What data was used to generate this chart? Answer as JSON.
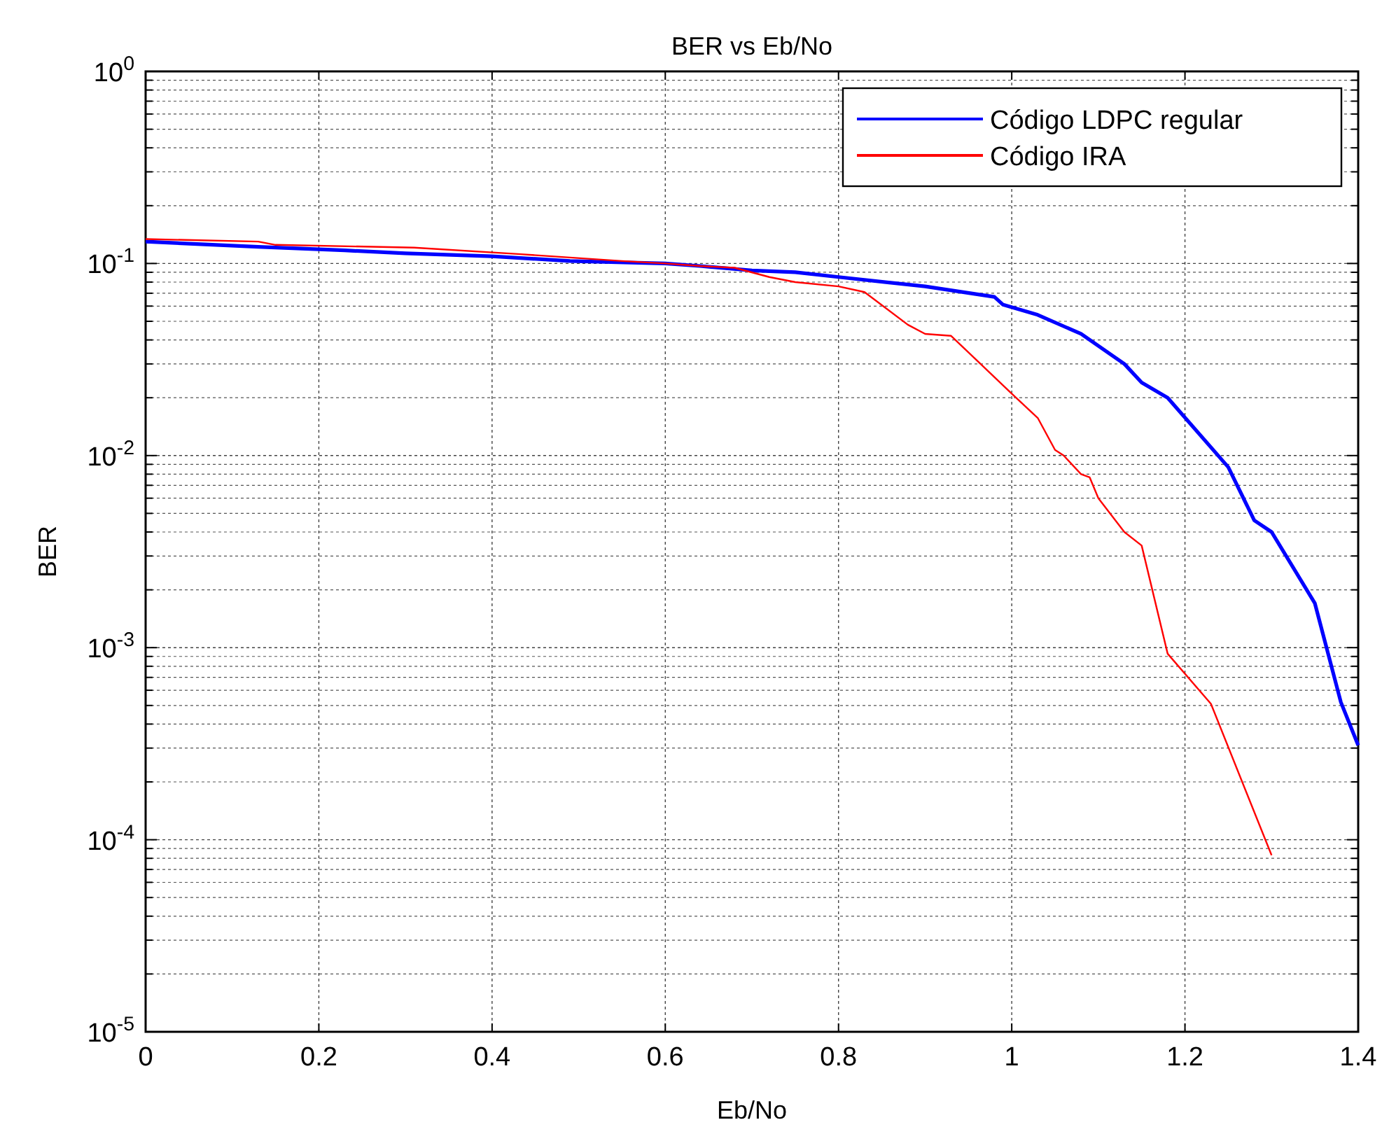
{
  "chart_data": {
    "type": "line",
    "title": "BER vs Eb/No",
    "xlabel": "Eb/No",
    "ylabel": "BER",
    "log": "y",
    "grid": true,
    "legend": "top right",
    "xlim": [
      0,
      1.4
    ],
    "xticks": [
      0,
      0.2,
      0.4,
      0.6,
      0.8,
      1,
      1.2,
      1.4
    ],
    "ylim": [
      1e-05,
      1
    ],
    "yticks": [
      {
        "value": 1,
        "label": "10$^{0}$"
      },
      {
        "value": 0.1,
        "label": "10$^{-1}$"
      },
      {
        "value": 0.01,
        "label": "10$^{-2}$"
      },
      {
        "value": 0.001,
        "label": "10$^{-3}$"
      },
      {
        "value": 0.0001,
        "label": "10$^{-4}$"
      },
      {
        "value": 1e-05,
        "label": "10$^{-5}$"
      }
    ],
    "series": [
      {
        "name": "Código LDPC regular",
        "color": "#0000ff",
        "x": [
          0,
          0.13,
          0.23,
          0.3,
          0.4,
          0.49,
          0.6,
          0.64,
          0.7,
          0.75,
          0.8,
          0.9,
          0.98,
          0.99,
          1.03,
          1.08,
          1.13,
          1.15,
          1.18,
          1.25,
          1.28,
          1.3,
          1.35,
          1.38,
          1.4
        ],
        "values": [
          0.13,
          0.122,
          0.117,
          0.113,
          0.109,
          0.103,
          0.1,
          0.097,
          0.092,
          0.09,
          0.085,
          0.076,
          0.067,
          0.061,
          0.054,
          0.043,
          0.03,
          0.024,
          0.02,
          0.0087,
          0.0046,
          0.004,
          0.0017,
          0.00052,
          0.00031
        ]
      },
      {
        "name": "Código IRA",
        "color": "#ff0000",
        "x": [
          0,
          0.13,
          0.15,
          0.31,
          0.43,
          0.55,
          0.6,
          0.64,
          0.68,
          0.72,
          0.75,
          0.8,
          0.83,
          0.88,
          0.9,
          0.93,
          1,
          1.03,
          1.05,
          1.06,
          1.08,
          1.09,
          1.1,
          1.13,
          1.15,
          1.18,
          1.23,
          1.3
        ],
        "values": [
          0.134,
          0.13,
          0.125,
          0.121,
          0.112,
          0.103,
          0.1,
          0.097,
          0.095,
          0.085,
          0.08,
          0.076,
          0.071,
          0.048,
          0.043,
          0.042,
          0.021,
          0.0157,
          0.0107,
          0.01,
          0.008,
          0.0077,
          0.006,
          0.004,
          0.0034,
          0.00093,
          0.00051,
          8.3e-05
        ]
      }
    ]
  }
}
